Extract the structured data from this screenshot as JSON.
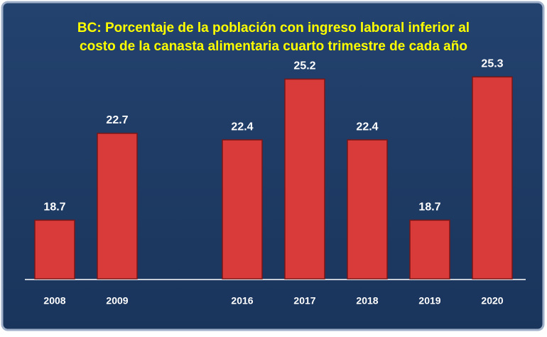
{
  "chart_data": {
    "type": "bar",
    "title": [
      "BC: Porcentaje de la población con ingreso laboral inferior al",
      "costo de la canasta alimentaria cuarto trimestre de cada año"
    ],
    "categories": [
      "2008",
      "2009",
      null,
      "2016",
      "2017",
      "2018",
      "2019",
      "2020"
    ],
    "values": [
      18.7,
      22.7,
      null,
      22.4,
      25.2,
      22.4,
      18.7,
      25.3
    ],
    "color": "#d93a3a",
    "ylim": [
      16,
      26
    ]
  }
}
